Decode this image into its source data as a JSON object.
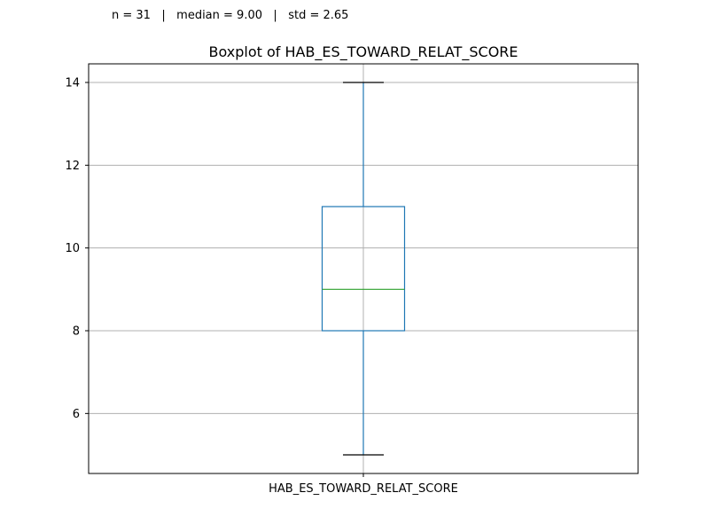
{
  "stats": {
    "n_label": "n = 31",
    "median_label": "median = 9.00",
    "std_label": "std = 2.65",
    "separator": "|"
  },
  "chart_data": {
    "type": "boxplot",
    "title": "Boxplot of HAB_ES_TOWARD_RELAT_SCORE",
    "xlabel": "",
    "ylabel": "",
    "categories": [
      "HAB_ES_TOWARD_RELAT_SCORE"
    ],
    "ylim": [
      4.55,
      14.45
    ],
    "yticks": [
      6,
      8,
      10,
      12,
      14
    ],
    "grid": true,
    "series": [
      {
        "whisker_low": 5,
        "q1": 8,
        "median": 9,
        "q3": 11,
        "whisker_high": 14
      }
    ],
    "colors": {
      "box": "#1f77b4",
      "median": "#2ca02c",
      "caps": "#000000",
      "grid": "#b0b0b0",
      "axes": "#000000"
    }
  }
}
